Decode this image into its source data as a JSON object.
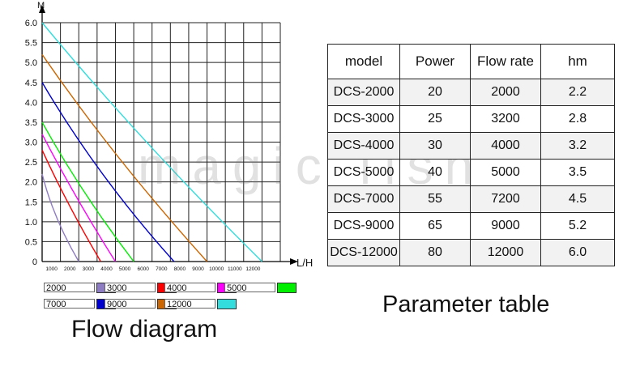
{
  "chart_data": {
    "type": "line",
    "xlabel": "L/H",
    "ylabel": "M",
    "xlim": [
      0,
      13000
    ],
    "ylim": [
      0,
      6.0
    ],
    "x_ticks": [
      "1000",
      "2000",
      "3000",
      "4000",
      "5000",
      "6000",
      "7000",
      "8000",
      "9000",
      "10000",
      "11000",
      "12000"
    ],
    "y_ticks": [
      "0",
      "0.5",
      "1.0",
      "1.5",
      "2.0",
      "2.5",
      "3.0",
      "3.5",
      "4.0",
      "4.5",
      "5.0",
      "5.5",
      "6.0"
    ],
    "grid": true,
    "series": [
      {
        "name": "2000",
        "color": "#8e7cc3",
        "points": [
          [
            0,
            2.2
          ],
          [
            800,
            1.1
          ],
          [
            2000,
            0
          ]
        ]
      },
      {
        "name": "3000",
        "color": "#ff0000",
        "points": [
          [
            0,
            2.8
          ],
          [
            1500,
            1.4
          ],
          [
            3200,
            0
          ]
        ]
      },
      {
        "name": "4000",
        "color": "#ff00ff",
        "points": [
          [
            0,
            3.2
          ],
          [
            1900,
            1.6
          ],
          [
            4000,
            0
          ]
        ]
      },
      {
        "name": "5000",
        "color": "#00ee00",
        "points": [
          [
            0,
            3.5
          ],
          [
            2300,
            1.75
          ],
          [
            5000,
            0
          ]
        ]
      },
      {
        "name": "7000",
        "color": "#0000cc",
        "points": [
          [
            0,
            4.5
          ],
          [
            3300,
            2.2
          ],
          [
            7200,
            0
          ]
        ]
      },
      {
        "name": "9000",
        "color": "#cc6600",
        "points": [
          [
            0,
            5.2
          ],
          [
            4200,
            2.6
          ],
          [
            9000,
            0
          ]
        ]
      },
      {
        "name": "12000",
        "color": "#33dddd",
        "points": [
          [
            0,
            6.0
          ],
          [
            5700,
            3.0
          ],
          [
            12000,
            0
          ]
        ]
      }
    ]
  },
  "legend": [
    {
      "label": "2000",
      "color": "#8e7cc3"
    },
    {
      "label": "3000",
      "color": "#ff0000"
    },
    {
      "label": "4000",
      "color": "#ff00ff"
    },
    {
      "label": "5000",
      "color": "#00ee00"
    },
    {
      "label": "7000",
      "color": "#0000cc"
    },
    {
      "label": "9000",
      "color": "#cc6600"
    },
    {
      "label": "12000",
      "color": "#33dddd"
    }
  ],
  "captions": {
    "flow": "Flow diagram",
    "param": "Parameter table"
  },
  "watermark": "magic fish",
  "table": {
    "headers": [
      "model",
      "Power",
      "Flow rate",
      "hm"
    ],
    "rows": [
      [
        "DCS-2000",
        "20",
        "2000",
        "2.2"
      ],
      [
        "DCS-3000",
        "25",
        "3200",
        "2.8"
      ],
      [
        "DCS-4000",
        "30",
        "4000",
        "3.2"
      ],
      [
        "DCS-5000",
        "40",
        "5000",
        "3.5"
      ],
      [
        "DCS-7000",
        "55",
        "7200",
        "4.5"
      ],
      [
        "DCS-9000",
        "65",
        "9000",
        "5.2"
      ],
      [
        "DCS-12000",
        "80",
        "12000",
        "6.0"
      ]
    ]
  }
}
